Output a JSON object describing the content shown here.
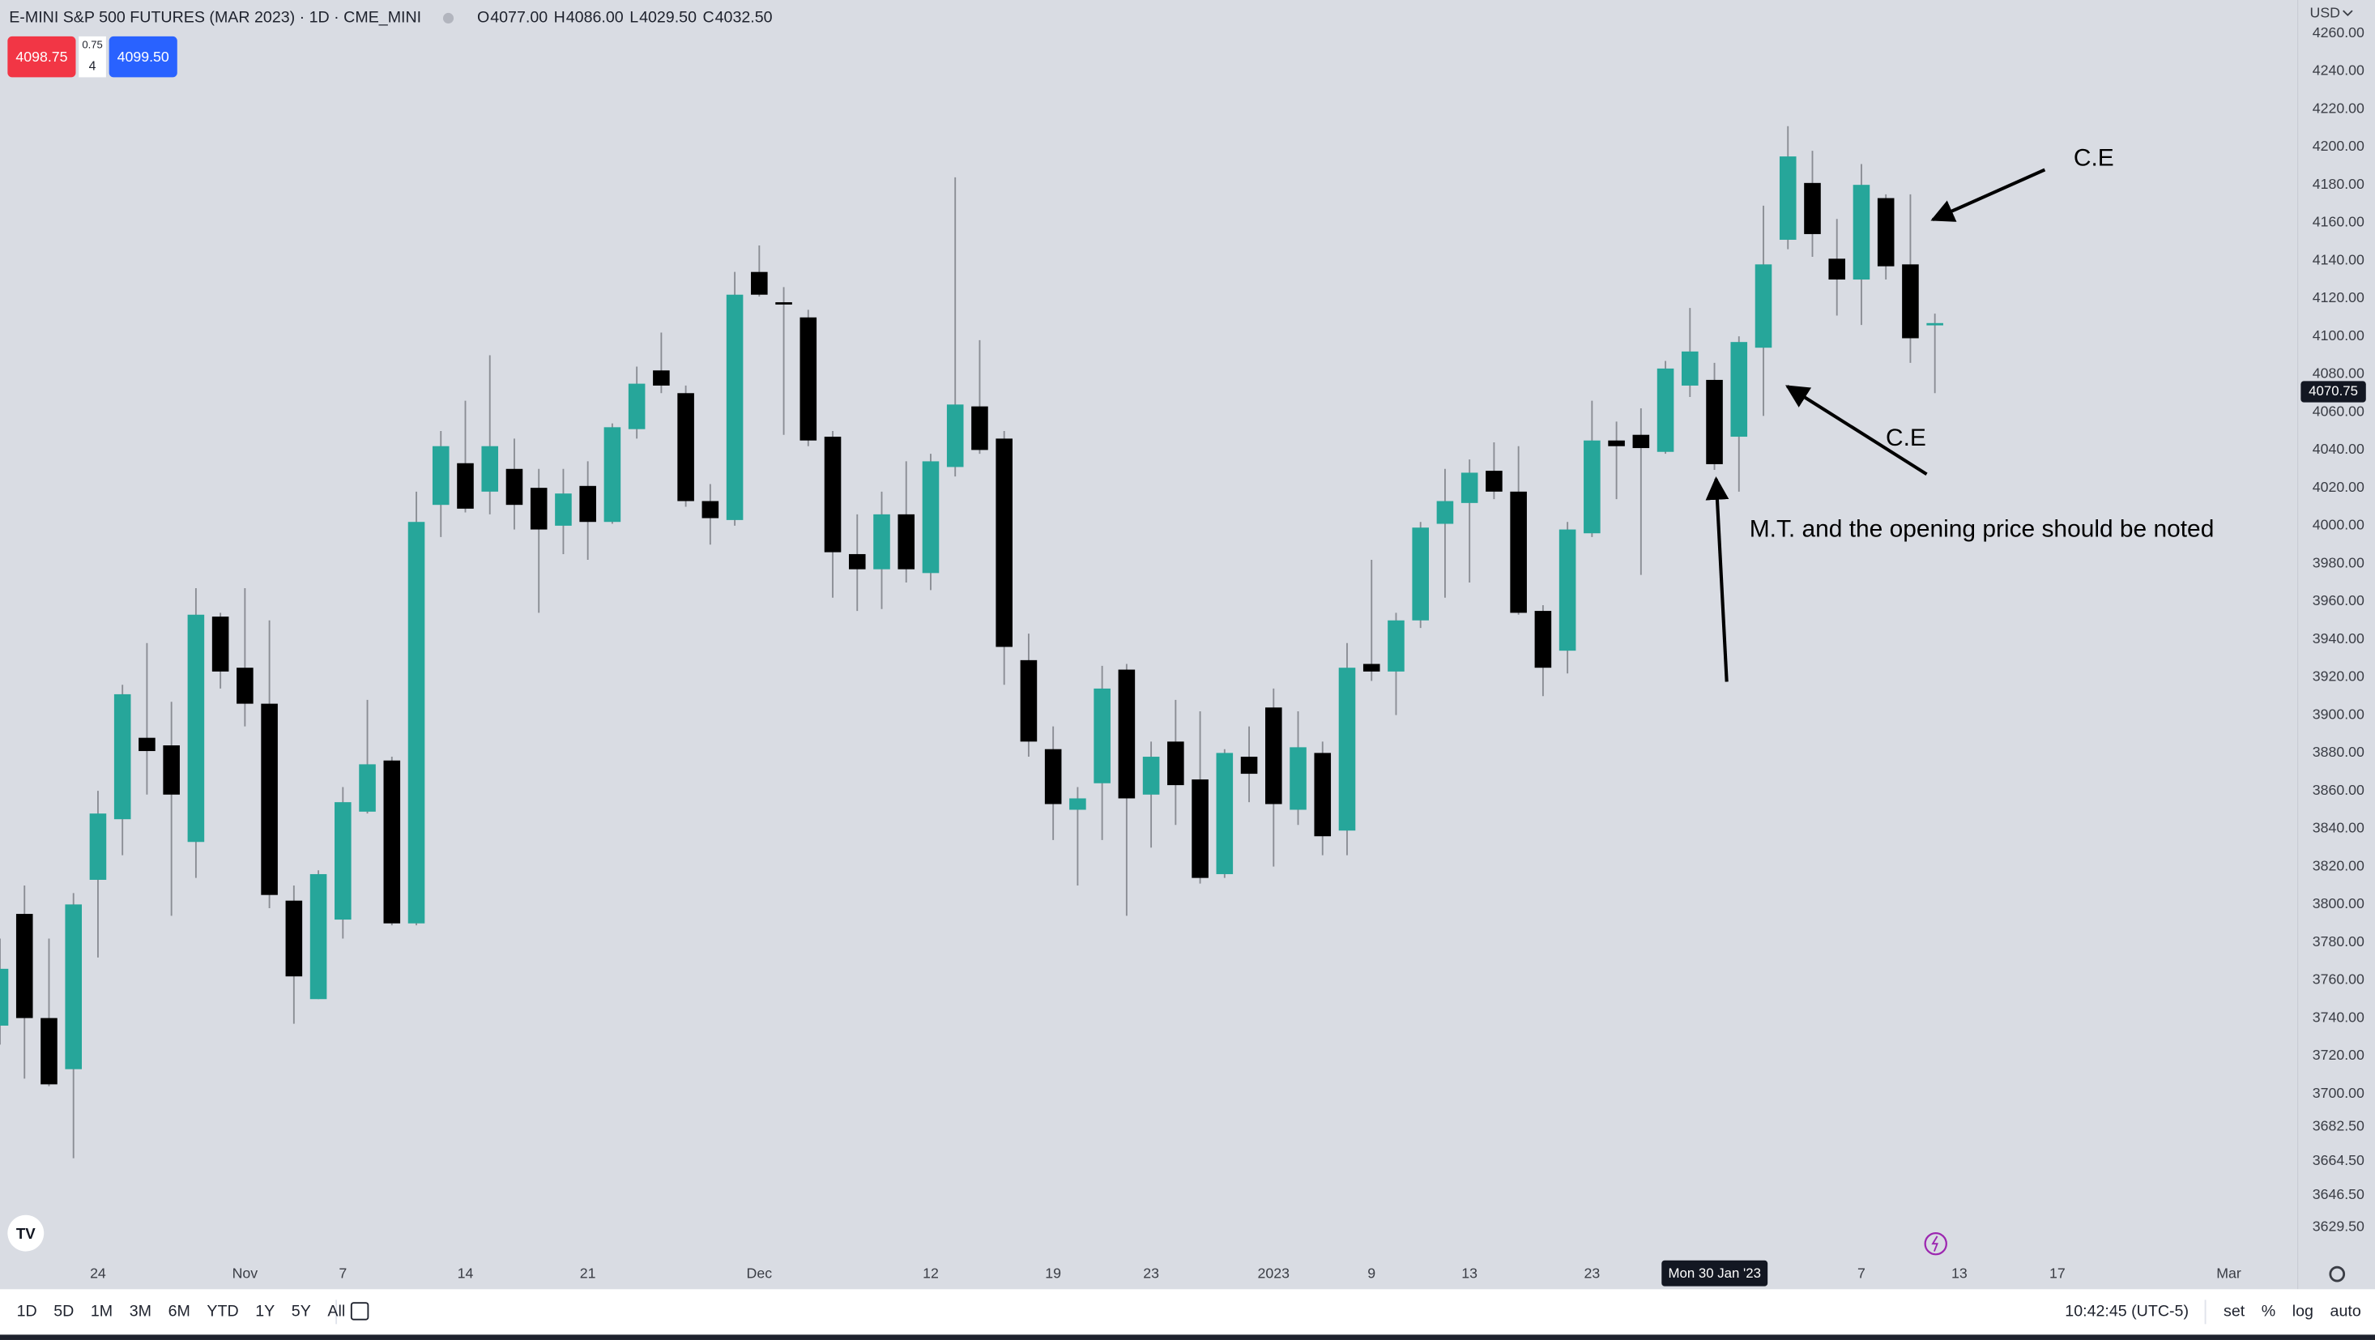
{
  "header": {
    "symbol_title": "E-MINI S&P 500 FUTURES (MAR 2023) · 1D · CME_MINI",
    "ohlc": [
      {
        "key": "O",
        "value": "4077.00"
      },
      {
        "key": "H",
        "value": "4086.00"
      },
      {
        "key": "L",
        "value": "4029.50"
      },
      {
        "key": "C",
        "value": "4032.50"
      }
    ],
    "sell_price": "4098.75",
    "spread": "0.75",
    "quantity": "4",
    "buy_price": "4099.50"
  },
  "chart_data": {
    "type": "candlestick",
    "categories": [
      null,
      null,
      null,
      null,
      "24",
      null,
      null,
      null,
      null,
      null,
      "Nov",
      null,
      null,
      null,
      "7",
      null,
      null,
      null,
      null,
      "14",
      null,
      null,
      null,
      null,
      "21",
      null,
      null,
      null,
      null,
      null,
      null,
      "Dec",
      null,
      null,
      null,
      null,
      null,
      null,
      "12",
      null,
      null,
      null,
      null,
      "19",
      null,
      null,
      null,
      "23",
      null,
      null,
      null,
      null,
      "2023",
      null,
      null,
      null,
      "9",
      null,
      null,
      null,
      "13",
      null,
      null,
      null,
      null,
      "23",
      null,
      null,
      null,
      null,
      null,
      null,
      null,
      null,
      null,
      null,
      "7",
      null,
      null,
      null,
      "13",
      null,
      null,
      null,
      "17",
      null,
      null,
      null,
      null,
      null,
      null,
      "Mar",
      null,
      null
    ],
    "open": [
      3736,
      3795,
      3740,
      3713,
      3813,
      3845,
      3888,
      3884,
      3833,
      3952,
      3925,
      3906,
      3802,
      3750,
      3792,
      3849,
      3876,
      3790,
      4011,
      4033,
      4018,
      4030,
      4020,
      4000,
      4021,
      4002,
      4051,
      4082,
      4070,
      4013,
      4003,
      4134,
      4118,
      4110,
      4047,
      3985,
      3977,
      4006,
      3975,
      4031,
      4063,
      4046,
      3929,
      3882,
      3850,
      3864,
      3924,
      3858,
      3886,
      3866,
      3816,
      3878,
      3904,
      3850,
      3880,
      3839,
      3927,
      3923,
      3950,
      4001,
      4012,
      4029,
      4018,
      3955,
      3934,
      3996,
      4045,
      4048,
      4039,
      4074,
      4077,
      4047,
      4094,
      4151,
      4181,
      4141,
      4130,
      4173,
      4138,
      4106,
      null,
      null,
      null,
      null,
      null,
      null,
      null,
      null,
      null,
      null,
      null,
      null,
      null,
      null
    ],
    "high": [
      3782,
      3810,
      3782,
      3806,
      3860,
      3916,
      3938,
      3907,
      3967,
      3954,
      3967,
      3950,
      3810,
      3818,
      3862,
      3908,
      3878,
      4018,
      4050,
      4066,
      4090,
      4046,
      4030,
      4030,
      4034,
      4054,
      4084,
      4102,
      4074,
      4022,
      4134,
      4148,
      4126,
      4114,
      4050,
      4006,
      4018,
      4034,
      4038,
      4184,
      4098,
      4050,
      3943,
      3894,
      3862,
      3926,
      3927,
      3886,
      3908,
      3902,
      3882,
      3894,
      3914,
      3902,
      3886,
      3938,
      3982,
      3954,
      4002,
      4030,
      4035,
      4044,
      4042,
      3958,
      4002,
      4066,
      4055,
      4062,
      4087,
      4115,
      4086,
      4100,
      4169,
      4211,
      4198,
      4162,
      4191,
      4175,
      4175,
      4112,
      null,
      null,
      null,
      null,
      null,
      null,
      null,
      null,
      null,
      null,
      null,
      null,
      null,
      null
    ],
    "low": [
      3726,
      3708,
      3704,
      3666,
      3772,
      3826,
      3858,
      3794,
      3814,
      3914,
      3894,
      3798,
      3737,
      3750,
      3782,
      3848,
      3789,
      3789,
      3994,
      4007,
      4006,
      3998,
      3954,
      3985,
      3982,
      4001,
      4046,
      4070,
      4010,
      3990,
      4000,
      4121,
      4048,
      4042,
      3962,
      3955,
      3956,
      3970,
      3966,
      4026,
      4038,
      3916,
      3878,
      3834,
      3810,
      3834,
      3794,
      3830,
      3842,
      3811,
      3814,
      3854,
      3820,
      3842,
      3826,
      3826,
      3918,
      3900,
      3946,
      3962,
      3970,
      4014,
      3953,
      3910,
      3922,
      3994,
      4014,
      3974,
      4038,
      4068,
      4029.5,
      4018,
      4058,
      4146,
      4142,
      4111,
      4106,
      4130,
      4086,
      4070,
      null,
      null,
      null,
      null,
      null,
      null,
      null,
      null,
      null,
      null,
      null,
      null,
      null,
      null
    ],
    "close": [
      3766,
      3740,
      3705,
      3800,
      3848,
      3911,
      3881,
      3858,
      3953,
      3923,
      3906,
      3805,
      3762,
      3816,
      3854,
      3874,
      3790,
      4002,
      4042,
      4009,
      4042,
      4011,
      3998,
      4017,
      4002,
      4052,
      4075,
      4074,
      4013,
      4004,
      4122,
      4122,
      4117,
      4045,
      3986,
      3977,
      4006,
      3977,
      4034,
      4064,
      4040,
      3936,
      3886,
      3853,
      3856,
      3914,
      3856,
      3878,
      3863,
      3814,
      3880,
      3869,
      3853,
      3883,
      3836,
      3925,
      3923,
      3950,
      3999,
      4013,
      4028,
      4018,
      3954,
      3925,
      3998,
      4045,
      4042,
      4041,
      4083,
      4092,
      4032.5,
      4097,
      4138,
      4195,
      4154,
      4130,
      4180,
      4137,
      4099,
      4107,
      null,
      null,
      null,
      null,
      null,
      null,
      null,
      null,
      null,
      null,
      null,
      null,
      null,
      null
    ],
    "up_color": "#26a69a",
    "down_color": "#000000",
    "grid": false,
    "ylim": [
      3613.6,
      4277.6
    ],
    "yticks": [
      {
        "value": 4260,
        "label": "4260.00"
      },
      {
        "value": 4240,
        "label": "4240.00"
      },
      {
        "value": 4220,
        "label": "4220.00"
      },
      {
        "value": 4200,
        "label": "4200.00"
      },
      {
        "value": 4180,
        "label": "4180.00"
      },
      {
        "value": 4160,
        "label": "4160.00"
      },
      {
        "value": 4140,
        "label": "4140.00"
      },
      {
        "value": 4120,
        "label": "4120.00"
      },
      {
        "value": 4100,
        "label": "4100.00"
      },
      {
        "value": 4080,
        "label": "4080.00"
      },
      {
        "value": 4060,
        "label": "4060.00"
      },
      {
        "value": 4040,
        "label": "4040.00"
      },
      {
        "value": 4020,
        "label": "4020.00"
      },
      {
        "value": 4000,
        "label": "4000.00"
      },
      {
        "value": 3980,
        "label": "3980.00"
      },
      {
        "value": 3960,
        "label": "3960.00"
      },
      {
        "value": 3940,
        "label": "3940.00"
      },
      {
        "value": 3920,
        "label": "3920.00"
      },
      {
        "value": 3900,
        "label": "3900.00"
      },
      {
        "value": 3880,
        "label": "3880.00"
      },
      {
        "value": 3860,
        "label": "3860.00"
      },
      {
        "value": 3840,
        "label": "3840.00"
      },
      {
        "value": 3820,
        "label": "3820.00"
      },
      {
        "value": 3800,
        "label": "3800.00"
      },
      {
        "value": 3780,
        "label": "3780.00"
      },
      {
        "value": 3760,
        "label": "3760.00"
      },
      {
        "value": 3740,
        "label": "3740.00"
      },
      {
        "value": 3720,
        "label": "3720.00"
      },
      {
        "value": 3700,
        "label": "3700.00"
      },
      {
        "value": 3682.5,
        "label": "3682.50"
      },
      {
        "value": 3664.5,
        "label": "3664.50"
      },
      {
        "value": 3646.5,
        "label": "3646.50"
      },
      {
        "value": 3629.5,
        "label": "3629.50"
      }
    ],
    "currency": "USD",
    "last_price": {
      "value": 4070.75,
      "label": "4070.75"
    },
    "crosshair_label": "Mon 30 Jan '23",
    "annotations": [
      "C.E",
      "C.E",
      "M.T. and the opening price should be noted"
    ]
  },
  "toolbar": {
    "ranges": [
      "1D",
      "5D",
      "1M",
      "3M",
      "6M",
      "YTD",
      "1Y",
      "5Y",
      "All"
    ],
    "clock": "10:42:45 (UTC-5)",
    "options": [
      "set",
      "%",
      "log",
      "auto"
    ]
  }
}
